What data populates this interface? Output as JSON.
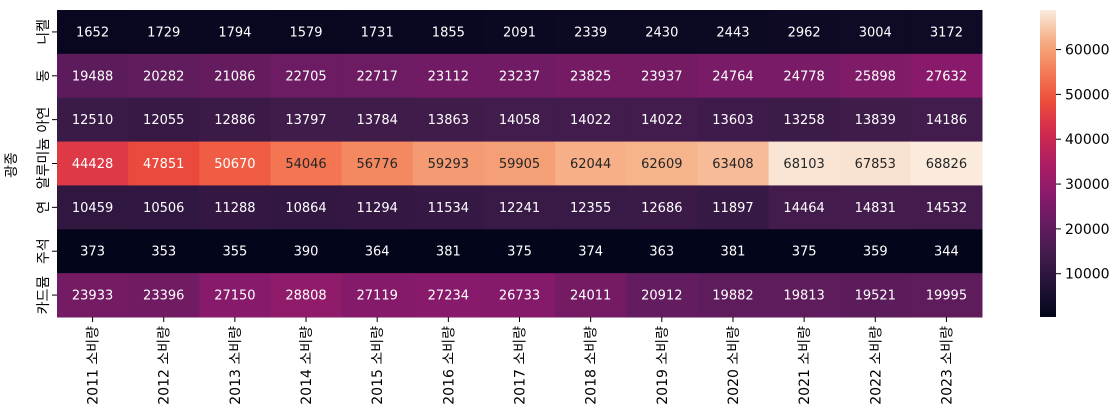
{
  "chart_data": {
    "type": "heatmap",
    "title": "",
    "xlabel": "",
    "ylabel": "광종",
    "x": [
      "2011 소비량",
      "2012 소비량",
      "2013 소비량",
      "2014 소비량",
      "2015 소비량",
      "2016 소비량",
      "2017 소비량",
      "2018 소비량",
      "2019 소비량",
      "2020 소비량",
      "2021 소비량",
      "2022 소비량",
      "2023 소비량"
    ],
    "y": [
      "니켈",
      "동",
      "아연",
      "알루미늄",
      "연",
      "주석",
      "카드뮴"
    ],
    "values": [
      [
        1652,
        1729,
        1794,
        1579,
        1731,
        1855,
        2091,
        2339,
        2430,
        2443,
        2962,
        3004,
        3172
      ],
      [
        19488,
        20282,
        21086,
        22705,
        22717,
        23112,
        23237,
        23825,
        23937,
        24764,
        24778,
        25898,
        27632
      ],
      [
        12510,
        12055,
        12886,
        13797,
        13784,
        13863,
        14058,
        14022,
        14022,
        13603,
        13258,
        13839,
        14186
      ],
      [
        44428,
        47851,
        50670,
        54046,
        56776,
        59293,
        59905,
        62044,
        62609,
        63408,
        68103,
        67853,
        68826
      ],
      [
        10459,
        10506,
        11288,
        10864,
        11294,
        11534,
        12241,
        12355,
        12686,
        11897,
        14464,
        14831,
        14532
      ],
      [
        373,
        353,
        355,
        390,
        364,
        381,
        375,
        374,
        363,
        381,
        375,
        359,
        344
      ],
      [
        23933,
        23396,
        27150,
        28808,
        27119,
        27234,
        26733,
        24011,
        20912,
        19882,
        19813,
        19521,
        19995
      ]
    ],
    "colormap": "rocket",
    "colorbar": {
      "ticks": [
        10000,
        20000,
        30000,
        40000,
        50000,
        60000
      ],
      "range": [
        344,
        68826
      ]
    },
    "annotations": "cell values shown"
  }
}
